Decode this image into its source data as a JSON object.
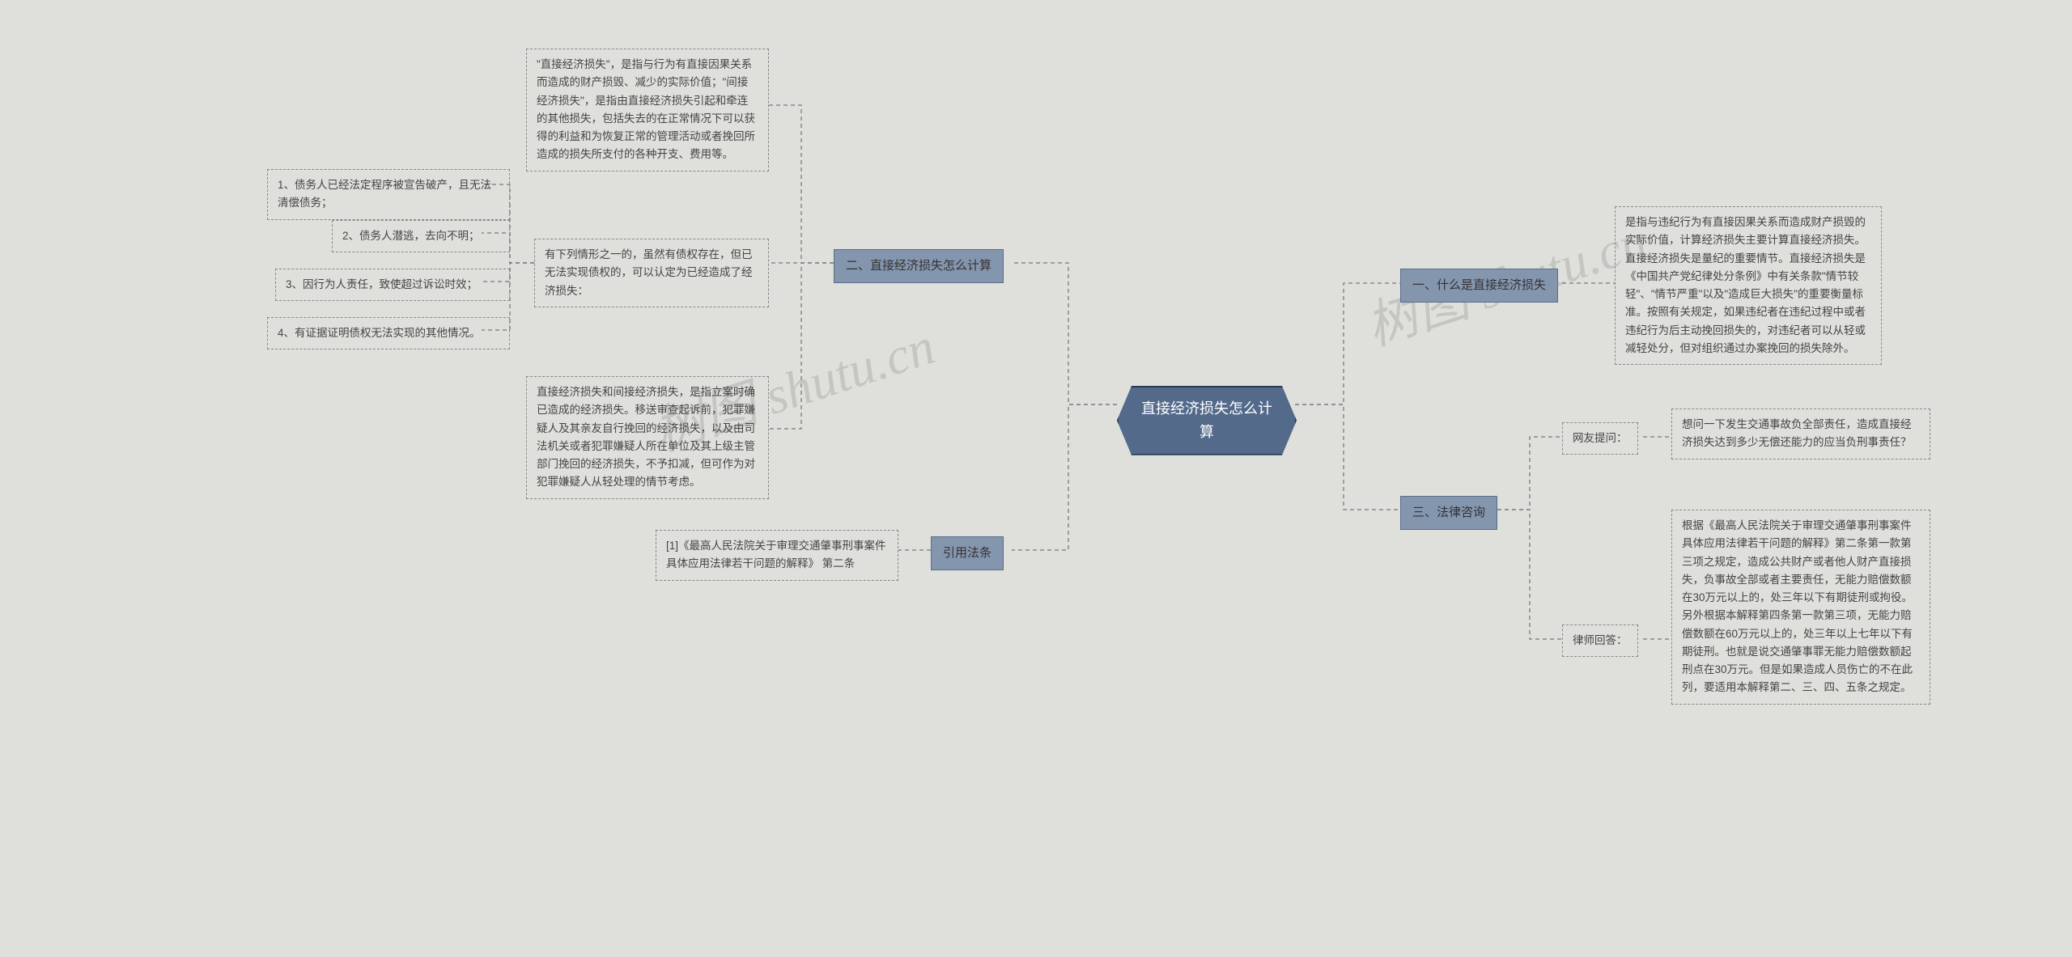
{
  "background_color": "#dfe0dc",
  "root_bg": "#536a8b",
  "root_border": "#2a3a52",
  "branch_bg": "#8495ae",
  "branch_border": "#5b6d88",
  "leaf_border": "#888888",
  "text_color": "#444444",
  "root_text_color": "#ffffff",
  "connector_color": "#888888",
  "dash_pattern": "5 4",
  "root_fontsize": 18,
  "branch_fontsize": 15,
  "leaf_fontsize": 13.5,
  "watermark_text": "树图 shutu.cn",
  "watermark_color": "rgba(130,130,130,0.28)",
  "watermark_fontsize": 64,
  "root": {
    "label": "直接经济损失怎么计算"
  },
  "right_branches": {
    "b1": {
      "label": "一、什么是直接经济损失",
      "leaves": {
        "l1": "是指与违纪行为有直接因果关系而造成财产损毁的实际价值，计算经济损失主要计算直接经济损失。直接经济损失是量纪的重要情节。直接经济损失是《中国共产党纪律处分条例》中有关条款\"情节较轻\"、\"情节严重\"以及\"造成巨大损失\"的重要衡量标准。按照有关规定，如果违纪者在违纪过程中或者违纪行为后主动挽回损失的，对违纪者可以从轻或减轻处分，但对组织通过办案挽回的损失除外。"
      }
    },
    "b3": {
      "label": "三、法律咨询",
      "leaves": {
        "l1_label": "网友提问：",
        "l1": "想问一下发生交通事故负全部责任，造成直接经济损失达到多少无偿还能力的应当负刑事责任？",
        "l2_label": "律师回答：",
        "l2": "根据《最高人民法院关于审理交通肇事刑事案件具体应用法律若干问题的解释》第二条第一款第三项之规定，造成公共财产或者他人财产直接损失，负事故全部或者主要责任，无能力赔偿数额在30万元以上的，处三年以下有期徒刑或拘役。另外根据本解释第四条第一款第三项，无能力赔偿数额在60万元以上的，处三年以上七年以下有期徒刑。也就是说交通肇事罪无能力赔偿数额起刑点在30万元。但是如果造成人员伤亡的不在此列，要适用本解释第二、三、四、五条之规定。"
      }
    }
  },
  "left_branches": {
    "b2": {
      "label": "二、直接经济损失怎么计算",
      "leaves": {
        "l1": "\"直接经济损失\"，是指与行为有直接因果关系而造成的财产损毁、减少的实际价值；\"间接经济损失\"，是指由直接经济损失引起和牵连的其他损失，包括失去的在正常情况下可以获得的利益和为恢复正常的管理活动或者挽回所造成的损失所支付的各种开支、费用等。",
        "l2": "有下列情形之一的，虽然有债权存在，但已无法实现债权的，可以认定为已经造成了经济损失：",
        "l2_subs": {
          "s1": "1、债务人已经法定程序被宣告破产，且无法清偿债务；",
          "s2": "2、债务人潜逃，去向不明；",
          "s3": "3、因行为人责任，致使超过诉讼时效；",
          "s4": "4、有证据证明债权无法实现的其他情况。"
        },
        "l3": "直接经济损失和间接经济损失，是指立案时确已造成的经济损失。移送审查起诉前，犯罪嫌疑人及其亲友自行挽回的经济损失，以及由司法机关或者犯罪嫌疑人所在单位及其上级主管部门挽回的经济损失，不予扣减，但可作为对犯罪嫌疑人从轻处理的情节考虑。"
      }
    },
    "b4": {
      "label": "引用法条",
      "leaves": {
        "l1": "[1]《最高人民法院关于审理交通肇事刑事案件具体应用法律若干问题的解释》 第二条"
      }
    }
  }
}
